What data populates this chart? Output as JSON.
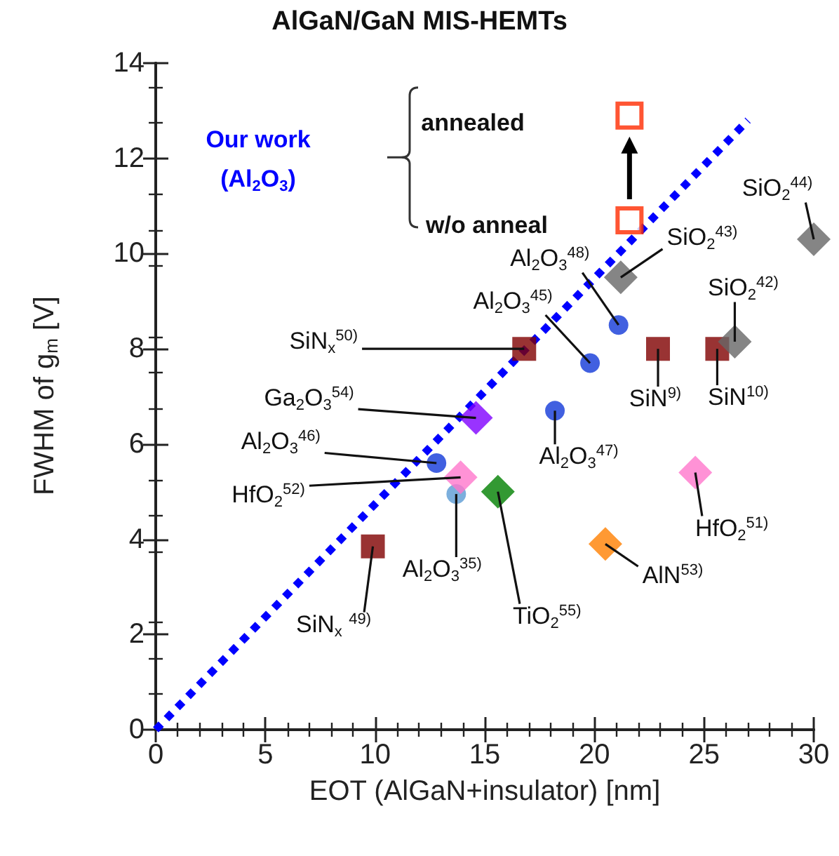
{
  "chart_data": {
    "type": "scatter",
    "title": "AlGaN/GaN MIS-HEMTs",
    "xlabel": "EOT (AlGaN+insulator) [nm]",
    "ylabel": "FWHM of g$_{m}$ [V]",
    "xlim": [
      0,
      30
    ],
    "xticks": [
      0,
      5,
      10,
      15,
      20,
      25,
      30
    ],
    "ylim": [
      0,
      14
    ],
    "yticks": [
      0,
      2,
      4,
      6,
      8,
      10,
      12,
      14
    ],
    "series": [
      {
        "type": "line",
        "color": "#0000ff",
        "line_style": "dotted",
        "marker": "none",
        "x": [
          0,
          27
        ],
        "values": [
          0,
          12.8
        ]
      },
      {
        "marker": "circle",
        "color": "#1238d8",
        "x": [
          21.1,
          19.8,
          18.2,
          12.8,
          13.7
        ],
        "values": [
          8.5,
          7.7,
          6.7,
          5.6,
          4.95
        ],
        "colors": [
          "#1238d8",
          "#1238d8",
          "#1238d8",
          "#1238d8",
          "#5b9bd5"
        ]
      },
      {
        "marker": "square",
        "color": "#7f0000",
        "x": [
          16.8,
          22.9,
          25.6,
          9.9
        ],
        "values": [
          8.0,
          8.0,
          8.0,
          3.85
        ]
      },
      {
        "marker": "diamond",
        "color": "#666666",
        "x": [
          30,
          21.2,
          26.4,
          14.6,
          13.9,
          24.6,
          15.6,
          20.5
        ],
        "values": [
          10.3,
          9.5,
          8.15,
          6.55,
          5.3,
          5.4,
          5.0,
          3.9
        ],
        "colors": [
          "#666666",
          "#666666",
          "#666666",
          "#8000ff",
          "#ff77cc",
          "#ff77cc",
          "#008000",
          "#ff8000"
        ]
      },
      {
        "marker": "square",
        "color": "#ff2a00",
        "x": [
          21.6,
          21.6
        ],
        "values": [
          10.7,
          12.9
        ]
      }
    ],
    "annotations": [
      "Our work\n(Al$_{2}$O$_{3}$)",
      "annealed",
      "w/o anneal",
      {
        "text": "Al$_{2}$O$_{3}$$^{48)}$",
        "x": 21.1,
        "y": 8.5
      },
      {
        "text": "Al$_{2}$O$_{3}$$^{45)}$",
        "x": 19.8,
        "y": 7.7
      },
      {
        "text": "SiN$_{x}$$^{50)}$",
        "x": 16.8,
        "y": 8.0
      },
      {
        "text": "SiN$^{9)}$",
        "x": 22.9,
        "y": 8.0
      },
      {
        "text": "SiN$^{10)}$",
        "x": 25.6,
        "y": 8.0
      },
      {
        "text": "SiO$_{2}$$^{44)}$",
        "x": 30,
        "y": 10.3
      },
      {
        "text": "SiO$_{2}$$^{43)}$",
        "x": 21.2,
        "y": 9.5
      },
      {
        "text": "SiO$_{2}$$^{42)}$",
        "x": 26.4,
        "y": 8.15
      },
      {
        "text": "Ga$_{2}$O$_{3}$$^{54)}$",
        "x": 14.6,
        "y": 6.55
      },
      {
        "text": "Al$_{2}$O$_{3}$$^{47)}$",
        "x": 18.2,
        "y": 6.7
      },
      {
        "text": "Al$_{2}$O$_{3}$$^{46)}$",
        "x": 12.8,
        "y": 5.6
      },
      {
        "text": "HfO$_{2}$$^{52)}$",
        "x": 13.9,
        "y": 5.3
      },
      {
        "text": "Al$_{2}$O$_{3}$$^{35)}$",
        "x": 13.7,
        "y": 4.95
      },
      {
        "text": "TiO$_{2}$$^{55)}$",
        "x": 15.6,
        "y": 5.0
      },
      {
        "text": "HfO$_{2}$$^{51)}$",
        "x": 24.6,
        "y": 5.4
      },
      {
        "text": "AlN$^{53)}$",
        "x": 20.5,
        "y": 3.9
      },
      {
        "text": "SiN$_{x}$ $^{49)}$",
        "x": 9.9,
        "y": 3.85
      }
    ]
  }
}
